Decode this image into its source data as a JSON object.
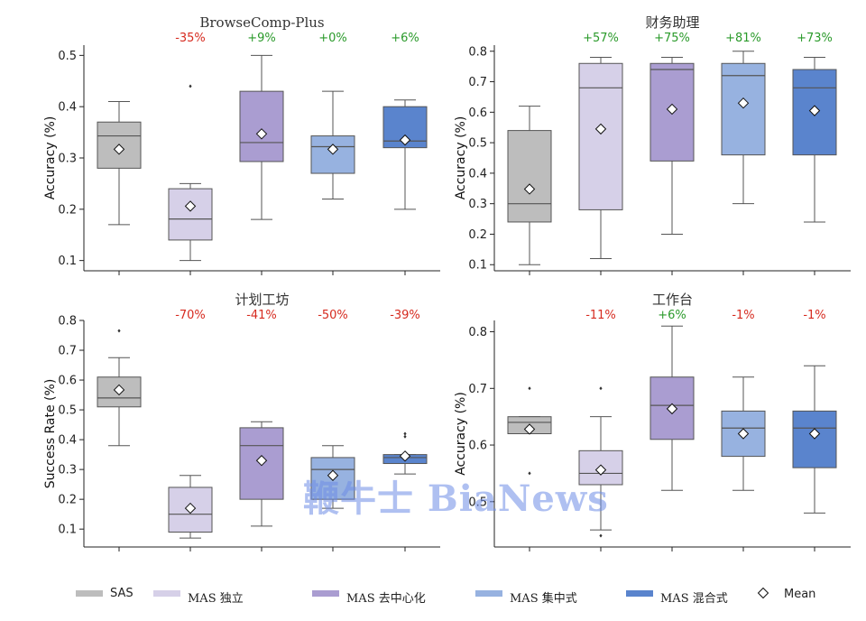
{
  "colors": {
    "SAS": "#bdbdbd",
    "MAS 独立": "#d6d0e8",
    "MAS 去中心化": "#aa9dd1",
    "MAS 集中式": "#97b2e0",
    "MAS 混合式": "#5a84cd",
    "positive": "#2a9a2a",
    "negative": "#d62a1f"
  },
  "legend": {
    "items": [
      "SAS",
      "MAS 独立",
      "MAS 去中心化",
      "MAS 集中式",
      "MAS 混合式"
    ],
    "mean_label": "Mean"
  },
  "watermark": "鞭牛士 BiaNews",
  "chart_data": [
    {
      "type": "box",
      "title": "BrowseComp-Plus",
      "ylabel": "Accuracy (%)",
      "ylim": [
        0.08,
        0.52
      ],
      "yticks": [
        "0.1",
        "0.2",
        "0.3",
        "0.4",
        "0.5"
      ],
      "categories": [
        "SAS",
        "MAS 独立",
        "MAS 去中心化",
        "MAS 集中式",
        "MAS 混合式"
      ],
      "changes": [
        "",
        "-35%",
        "+9%",
        "+0%",
        "+6%"
      ],
      "boxes": [
        {
          "q1": 0.28,
          "median": 0.343,
          "q3": 0.37,
          "whisker_low": 0.17,
          "whisker_high": 0.41,
          "mean": 0.317,
          "outliers": []
        },
        {
          "q1": 0.14,
          "median": 0.181,
          "q3": 0.24,
          "whisker_low": 0.1,
          "whisker_high": 0.25,
          "mean": 0.206,
          "outliers": [
            0.44
          ]
        },
        {
          "q1": 0.293,
          "median": 0.33,
          "q3": 0.43,
          "whisker_low": 0.18,
          "whisker_high": 0.5,
          "mean": 0.347,
          "outliers": []
        },
        {
          "q1": 0.27,
          "median": 0.322,
          "q3": 0.343,
          "whisker_low": 0.22,
          "whisker_high": 0.43,
          "mean": 0.317,
          "outliers": []
        },
        {
          "q1": 0.32,
          "median": 0.333,
          "q3": 0.4,
          "whisker_low": 0.2,
          "whisker_high": 0.413,
          "mean": 0.335,
          "outliers": []
        }
      ]
    },
    {
      "type": "box",
      "title": "财务助理",
      "ylabel": "Accuracy (%)",
      "ylim": [
        0.08,
        0.82
      ],
      "yticks": [
        "0.1",
        "0.2",
        "0.3",
        "0.4",
        "0.5",
        "0.6",
        "0.7",
        "0.8"
      ],
      "categories": [
        "SAS",
        "MAS 独立",
        "MAS 去中心化",
        "MAS 集中式",
        "MAS 混合式"
      ],
      "changes": [
        "",
        "+57%",
        "+75%",
        "+81%",
        "+73%"
      ],
      "boxes": [
        {
          "q1": 0.24,
          "median": 0.3,
          "q3": 0.54,
          "whisker_low": 0.1,
          "whisker_high": 0.62,
          "mean": 0.348,
          "outliers": []
        },
        {
          "q1": 0.28,
          "median": 0.68,
          "q3": 0.76,
          "whisker_low": 0.12,
          "whisker_high": 0.78,
          "mean": 0.545,
          "outliers": []
        },
        {
          "q1": 0.44,
          "median": 0.74,
          "q3": 0.76,
          "whisker_low": 0.2,
          "whisker_high": 0.78,
          "mean": 0.61,
          "outliers": []
        },
        {
          "q1": 0.46,
          "median": 0.72,
          "q3": 0.76,
          "whisker_low": 0.3,
          "whisker_high": 0.8,
          "mean": 0.63,
          "outliers": []
        },
        {
          "q1": 0.46,
          "median": 0.68,
          "q3": 0.74,
          "whisker_low": 0.24,
          "whisker_high": 0.78,
          "mean": 0.605,
          "outliers": []
        }
      ]
    },
    {
      "type": "box",
      "title": "计划工坊",
      "ylabel": "Success Rate (%)",
      "ylim": [
        0.04,
        0.8
      ],
      "yticks": [
        "0.1",
        "0.2",
        "0.3",
        "0.4",
        "0.5",
        "0.6",
        "0.7",
        "0.8"
      ],
      "categories": [
        "SAS",
        "MAS 独立",
        "MAS 去中心化",
        "MAS 集中式",
        "MAS 混合式"
      ],
      "changes": [
        "",
        "-70%",
        "-41%",
        "-50%",
        "-39%"
      ],
      "boxes": [
        {
          "q1": 0.51,
          "median": 0.54,
          "q3": 0.61,
          "whisker_low": 0.38,
          "whisker_high": 0.675,
          "mean": 0.567,
          "outliers": [
            0.765
          ]
        },
        {
          "q1": 0.09,
          "median": 0.15,
          "q3": 0.24,
          "whisker_low": 0.07,
          "whisker_high": 0.28,
          "mean": 0.17,
          "outliers": []
        },
        {
          "q1": 0.2,
          "median": 0.38,
          "q3": 0.44,
          "whisker_low": 0.11,
          "whisker_high": 0.46,
          "mean": 0.33,
          "outliers": []
        },
        {
          "q1": 0.2,
          "median": 0.3,
          "q3": 0.34,
          "whisker_low": 0.17,
          "whisker_high": 0.38,
          "mean": 0.28,
          "outliers": []
        },
        {
          "q1": 0.32,
          "median": 0.34,
          "q3": 0.35,
          "whisker_low": 0.285,
          "whisker_high": 0.35,
          "mean": 0.345,
          "outliers": [
            0.41,
            0.42
          ]
        }
      ]
    },
    {
      "type": "box",
      "title": "工作台",
      "ylabel": "Accuracy (%)",
      "ylim": [
        0.42,
        0.82
      ],
      "yticks": [
        "0.5",
        "0.6",
        "0.7",
        "0.8"
      ],
      "categories": [
        "SAS",
        "MAS 独立",
        "MAS 去中心化",
        "MAS 集中式",
        "MAS 混合式"
      ],
      "changes": [
        "",
        "-11%",
        "+6%",
        "-1%",
        "-1%"
      ],
      "boxes": [
        {
          "q1": 0.62,
          "median": 0.64,
          "q3": 0.65,
          "whisker_low": 0.62,
          "whisker_high": 0.65,
          "mean": 0.628,
          "outliers": [
            0.7,
            0.55
          ]
        },
        {
          "q1": 0.53,
          "median": 0.55,
          "q3": 0.59,
          "whisker_low": 0.45,
          "whisker_high": 0.65,
          "mean": 0.556,
          "outliers": [
            0.7,
            0.44
          ]
        },
        {
          "q1": 0.61,
          "median": 0.67,
          "q3": 0.72,
          "whisker_low": 0.52,
          "whisker_high": 0.81,
          "mean": 0.664,
          "outliers": []
        },
        {
          "q1": 0.58,
          "median": 0.63,
          "q3": 0.66,
          "whisker_low": 0.52,
          "whisker_high": 0.72,
          "mean": 0.62,
          "outliers": []
        },
        {
          "q1": 0.56,
          "median": 0.63,
          "q3": 0.66,
          "whisker_low": 0.48,
          "whisker_high": 0.74,
          "mean": 0.62,
          "outliers": []
        }
      ]
    }
  ]
}
